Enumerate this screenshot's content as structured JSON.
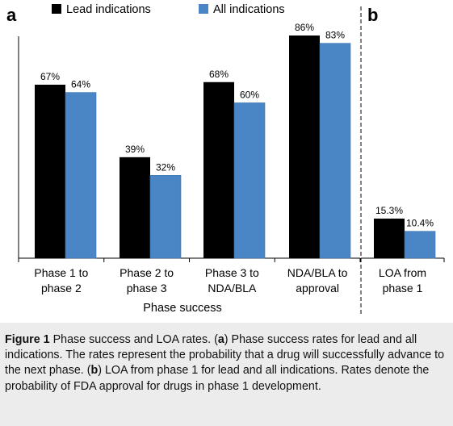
{
  "chart_data": [
    {
      "panel_label": "a",
      "type": "bar",
      "categories": [
        "Phase 1 to phase 2",
        "Phase 2 to phase 3",
        "Phase 3 to NDA/BLA",
        "NDA/BLA to approval"
      ],
      "category_lines": [
        [
          "Phase 1 to",
          "phase 2"
        ],
        [
          "Phase 2 to",
          "phase 3"
        ],
        [
          "Phase 3 to",
          "NDA/BLA"
        ],
        [
          "NDA/BLA to",
          "approval"
        ]
      ],
      "series": [
        {
          "name": "Lead indications",
          "color": "#000000",
          "values": [
            67,
            39,
            68,
            86
          ],
          "labels": [
            "67%",
            "39%",
            "68%",
            "86%"
          ]
        },
        {
          "name": "All indications",
          "color": "#4a86c5",
          "values": [
            64,
            32,
            60,
            83
          ],
          "labels": [
            "64%",
            "32%",
            "60%",
            "83%"
          ]
        }
      ],
      "xlabel": "Phase success",
      "ylabel": "",
      "ylim": [
        0,
        100
      ],
      "grid": false,
      "legend_position": "top"
    },
    {
      "panel_label": "b",
      "type": "bar",
      "categories": [
        "LOA from phase 1"
      ],
      "category_lines": [
        [
          "LOA from",
          "phase 1"
        ]
      ],
      "series": [
        {
          "name": "Lead indications",
          "color": "#000000",
          "values": [
            15.3
          ],
          "labels": [
            "15.3%"
          ]
        },
        {
          "name": "All indications",
          "color": "#4a86c5",
          "values": [
            10.4
          ],
          "labels": [
            "10.4%"
          ]
        }
      ],
      "xlabel": "",
      "ylabel": "",
      "ylim": [
        0,
        100
      ],
      "grid": false
    }
  ],
  "legend": [
    {
      "name": "Lead indications",
      "color": "#000000"
    },
    {
      "name": "All indications",
      "color": "#4a86c5"
    }
  ],
  "caption": {
    "figure_label": "Figure 1",
    "segments": [
      {
        "text": "  Phase success and LOA rates. (",
        "bold": false
      },
      {
        "text": "a",
        "bold": true
      },
      {
        "text": ") Phase success rates for lead and all indications. The rates represent the probability that a drug will successfully advance to the next phase. (",
        "bold": false
      },
      {
        "text": "b",
        "bold": true
      },
      {
        "text": ") LOA from phase 1 for lead and all indications. Rates denote the probability of FDA approval for drugs in phase 1 development.",
        "bold": false
      }
    ]
  }
}
